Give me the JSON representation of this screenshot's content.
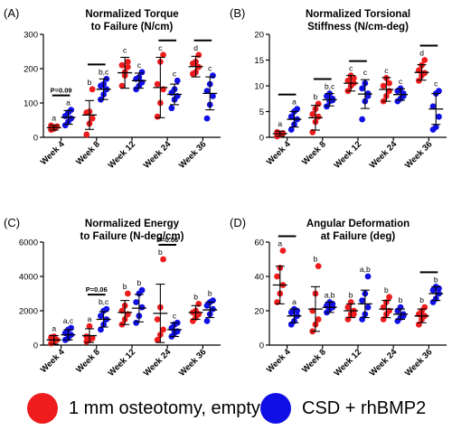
{
  "colors": {
    "red": "#ee1c1c",
    "blue": "#1010e6",
    "axis": "#000000"
  },
  "legend": {
    "red_label": "1 mm osteotomy, empty",
    "blue_label": "CSD + rhBMP2"
  },
  "chart_data": [
    {
      "letter": "(A)",
      "type": "scatter",
      "title": [
        "Normalized Torque",
        "to Failure (N/cm)"
      ],
      "ylim": [
        0,
        300
      ],
      "yticks": [
        0,
        100,
        200,
        300
      ],
      "categories": [
        "Week 4",
        "Week 8",
        "Week 12",
        "Week 24",
        "Week 36"
      ],
      "series": [
        {
          "name": "1 mm osteotomy, empty",
          "color": "red",
          "mean": [
            28,
            65,
            188,
            145,
            206
          ],
          "sd": [
            7,
            42,
            45,
            88,
            30
          ],
          "points": [
            [
              22,
              28,
              32,
              34,
              25
            ],
            [
              8,
              40,
              55,
              72,
              75,
              140
            ],
            [
              150,
              180,
              205,
              210,
              190,
              220
            ],
            [
              60,
              100,
              140,
              155,
              220,
              240
            ],
            [
              185,
              190,
              205,
              215,
              220,
              240
            ]
          ],
          "letters": [
            "a",
            "b",
            "c",
            "c",
            "d"
          ]
        },
        {
          "name": "CSD + rhBMP2",
          "color": "blue",
          "mean": [
            58,
            140,
            165,
            125,
            128
          ],
          "sd": [
            20,
            30,
            22,
            30,
            48
          ],
          "points": [
            [
              35,
              45,
              55,
              62,
              72,
              80
            ],
            [
              110,
              125,
              140,
              150,
              155,
              170
            ],
            [
              140,
              150,
              160,
              170,
              175,
              190
            ],
            [
              85,
              110,
              120,
              130,
              140,
              165
            ],
            [
              55,
              95,
              120,
              135,
              155,
              180
            ]
          ],
          "letters": [
            "a",
            "b,c",
            "c",
            "c",
            "c"
          ]
        }
      ],
      "sig_bars": [
        0,
        1,
        3,
        4
      ],
      "pvalues": [
        {
          "index": 0,
          "text": "P=0.09"
        }
      ]
    },
    {
      "letter": "(B)",
      "type": "scatter",
      "title": [
        "Normalized Torsional",
        "Stiffness (N/cm-deg)"
      ],
      "ylim": [
        0,
        20
      ],
      "yticks": [
        0,
        5,
        10,
        15,
        20
      ],
      "categories": [
        "Week 4",
        "Week 8",
        "Week 12",
        "Week 24",
        "Week 36"
      ],
      "series": [
        {
          "name": "1 mm osteotomy, empty",
          "color": "red",
          "mean": [
            0.7,
            3.8,
            10.5,
            9.3,
            12.6
          ],
          "sd": [
            0.5,
            2.4,
            1.5,
            2.3,
            1.5
          ],
          "points": [
            [
              0.2,
              0.5,
              0.8,
              1.0,
              0.6
            ],
            [
              1.0,
              3.0,
              4.0,
              4.5,
              5.5,
              6.5
            ],
            [
              9.0,
              10.0,
              10.5,
              11.0,
              12.0,
              11.5
            ],
            [
              7.0,
              8.0,
              9.0,
              10.0,
              11.5,
              10.5
            ],
            [
              11.0,
              12.0,
              12.5,
              13.0,
              14.0,
              15.0
            ]
          ],
          "letters": [
            "a",
            "b",
            "c",
            "c",
            "d"
          ]
        },
        {
          "name": "CSD + rhBMP2",
          "color": "blue",
          "mean": [
            3.5,
            7.3,
            8.4,
            8.3,
            5.5
          ],
          "sd": [
            1.5,
            1.2,
            2.8,
            1.1,
            3.0
          ],
          "points": [
            [
              1.5,
              2.5,
              3.5,
              4.0,
              5.0,
              5.5
            ],
            [
              6.0,
              7.0,
              7.5,
              8.0,
              8.5,
              7.2
            ],
            [
              3.5,
              7.0,
              8.0,
              9.5,
              10.5,
              8.5
            ],
            [
              7.0,
              7.5,
              8.5,
              9.0,
              9.5,
              8.0
            ],
            [
              1.5,
              2.0,
              4.0,
              6.0,
              8.5,
              9.0
            ]
          ],
          "letters": [
            "a",
            "b,c",
            "c",
            "c",
            "c"
          ]
        }
      ],
      "sig_bars": [
        0,
        1,
        2,
        4
      ],
      "pvalues": []
    },
    {
      "letter": "(C)",
      "type": "scatter",
      "title": [
        "Normalized Energy",
        "to Failure (N-deg/cm)"
      ],
      "ylim": [
        0,
        6000
      ],
      "yticks": [
        0,
        2000,
        4000,
        6000
      ],
      "categories": [
        "Week 4",
        "Week 8",
        "Week 12",
        "Week 24",
        "Week 36"
      ],
      "series": [
        {
          "name": "1 mm osteotomy, empty",
          "color": "red",
          "mean": [
            300,
            550,
            1900,
            1850,
            1900
          ],
          "sd": [
            250,
            400,
            700,
            1700,
            400
          ],
          "points": [
            [
              100,
              200,
              300,
              450,
              500
            ],
            [
              200,
              300,
              400,
              500,
              1100
            ],
            [
              1200,
              1500,
              1800,
              2000,
              2300,
              3000
            ],
            [
              300,
              600,
              900,
              1500,
              2200,
              5000
            ],
            [
              1400,
              1600,
              1800,
              1900,
              2000,
              2400
            ]
          ],
          "letters": [
            "a",
            "a",
            "b",
            "b",
            "b"
          ]
        },
        {
          "name": "CSD + rhBMP2",
          "color": "blue",
          "mean": [
            600,
            1500,
            2150,
            900,
            2050
          ],
          "sd": [
            300,
            450,
            800,
            400,
            450
          ],
          "points": [
            [
              300,
              400,
              600,
              700,
              900,
              1000
            ],
            [
              900,
              1200,
              1500,
              1700,
              2000,
              2100
            ],
            [
              1300,
              1700,
              2200,
              2500,
              3000,
              3200
            ],
            [
              500,
              700,
              800,
              1000,
              1200,
              1300
            ],
            [
              1400,
              1800,
              2100,
              2300,
              2500,
              2600
            ]
          ],
          "letters": [
            "a,c",
            "b,c",
            "b",
            "c",
            "b"
          ]
        }
      ],
      "sig_bars": [
        1,
        3
      ],
      "pvalues": [
        {
          "index": 1,
          "text": "P=0.06"
        },
        {
          "index": 3,
          "text": "P=0.06"
        }
      ]
    },
    {
      "letter": "(D)",
      "type": "scatter",
      "title": [
        "Angular Deformation",
        "at Failure (deg)"
      ],
      "ylim": [
        0,
        60
      ],
      "yticks": [
        0,
        20,
        40,
        60
      ],
      "categories": [
        "Week 4",
        "Week 8",
        "Week 12",
        "Week 24",
        "Week 36"
      ],
      "series": [
        {
          "name": "1 mm osteotomy, empty",
          "color": "red",
          "mean": [
            35,
            21,
            20,
            21,
            17
          ],
          "sd": [
            11,
            13,
            4,
            5,
            4
          ],
          "points": [
            [
              25,
              30,
              35,
              40,
              45,
              55
            ],
            [
              8,
              12,
              15,
              20,
              30,
              46
            ],
            [
              15,
              18,
              20,
              22,
              25,
              18
            ],
            [
              15,
              18,
              20,
              22,
              25,
              28
            ],
            [
              12,
              15,
              17,
              18,
              20,
              22
            ]
          ],
          "letters": [
            "a",
            "b",
            "b",
            "b",
            "b"
          ]
        },
        {
          "name": "CSD + rhBMP2",
          "color": "blue",
          "mean": [
            17,
            22,
            24,
            18,
            30
          ],
          "sd": [
            4,
            3,
            8,
            3,
            4
          ],
          "points": [
            [
              12,
              14,
              17,
              19,
              21,
              20
            ],
            [
              19,
              21,
              22,
              23,
              25,
              24
            ],
            [
              15,
              18,
              22,
              26,
              30,
              40
            ],
            [
              14,
              16,
              18,
              20,
              22,
              17
            ],
            [
              25,
              27,
              30,
              32,
              34,
              33
            ]
          ],
          "letters": [
            "a",
            "a,b",
            "a,b",
            "b",
            "b"
          ]
        }
      ],
      "sig_bars": [
        0,
        4
      ],
      "pvalues": []
    }
  ]
}
